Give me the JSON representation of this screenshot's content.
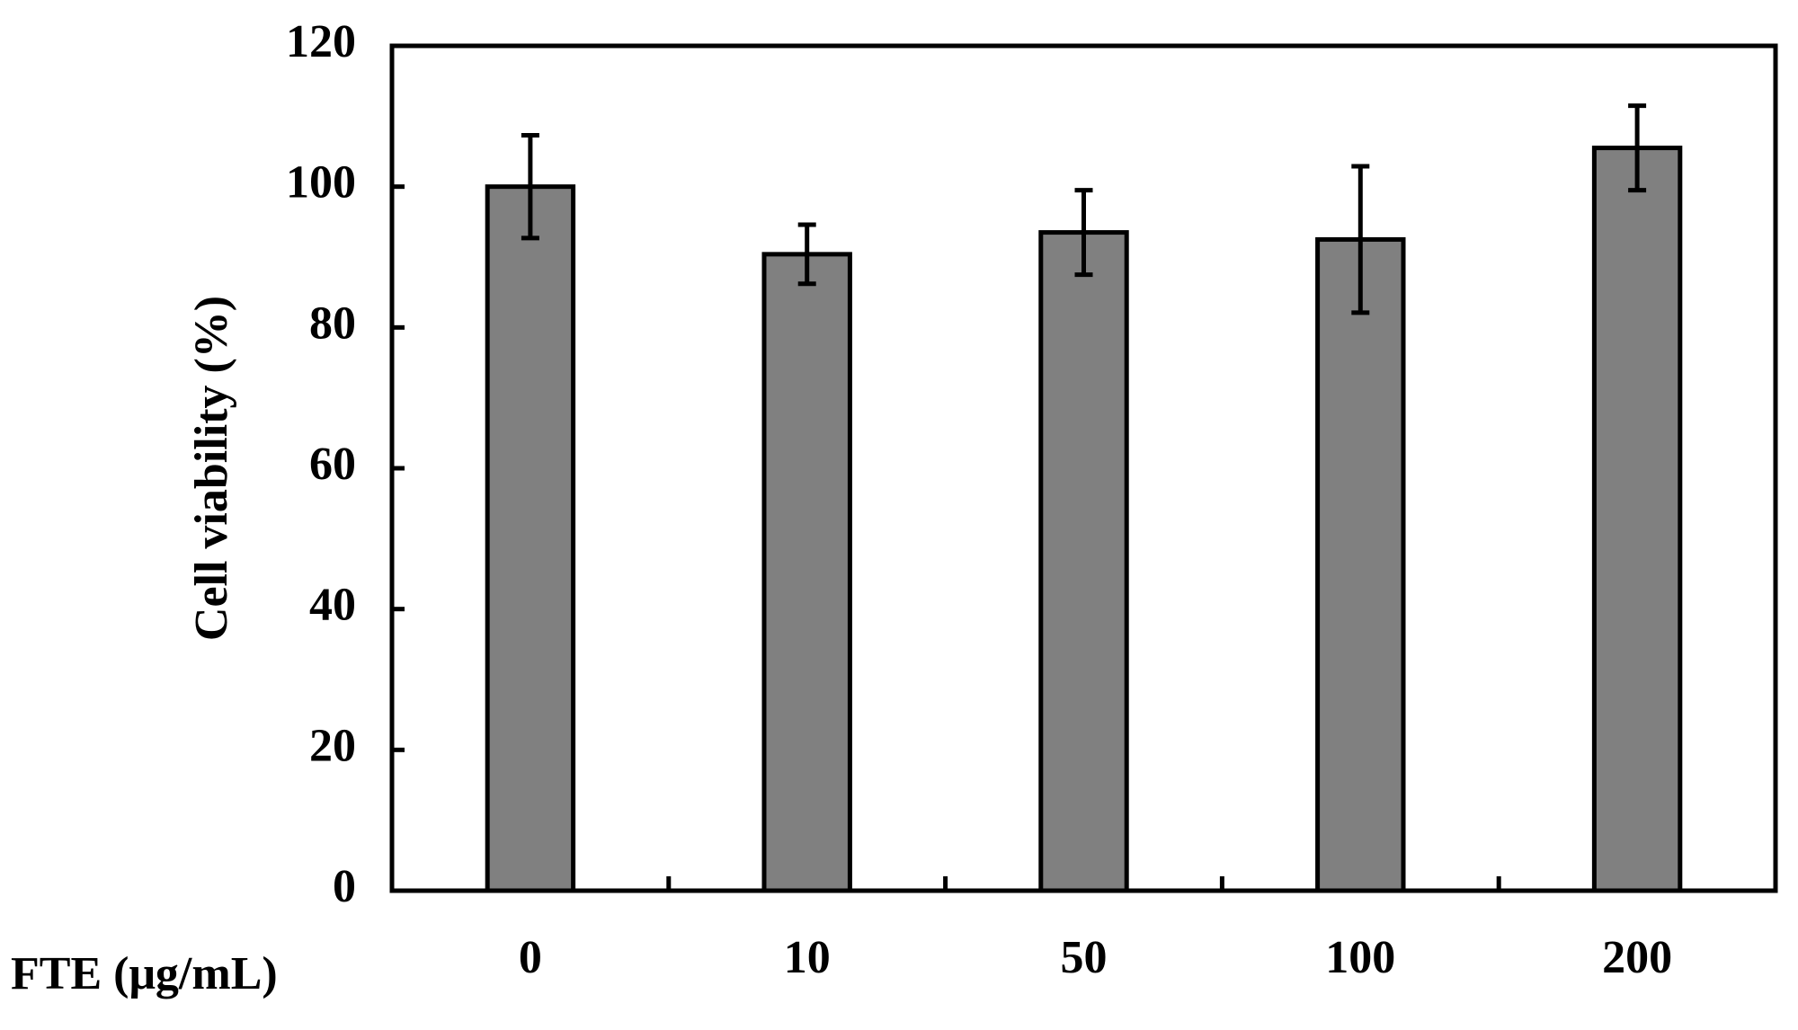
{
  "chart_data": {
    "type": "bar",
    "x_label": "FTE (μg/mL)",
    "y_label": "Cell viability (%)",
    "categories": [
      "0",
      "10",
      "50",
      "100",
      "200"
    ],
    "values": [
      100,
      90.4,
      93.5,
      92.5,
      105.5
    ],
    "errors": [
      7.3,
      4.2,
      6,
      10.4,
      6
    ],
    "color": "#808080",
    "ylim": [
      0,
      120
    ],
    "yticks": [
      0,
      20,
      40,
      60,
      80,
      100,
      120
    ],
    "grid": false
  }
}
